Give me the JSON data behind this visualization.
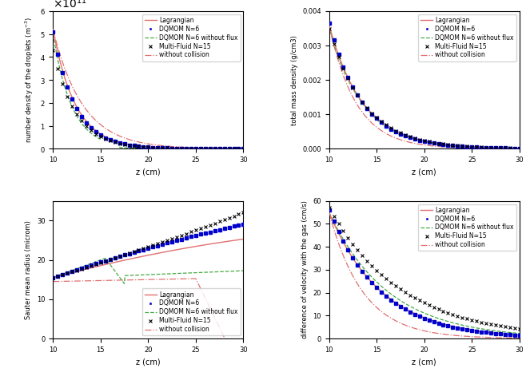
{
  "xlim": [
    10,
    30
  ],
  "xticks": [
    10,
    15,
    20,
    25,
    30
  ],
  "xlabel": "z (cm)",
  "legend_labels": [
    "Lagrangian",
    "DQMOM N=6",
    "DQMOM N=6 without flux",
    "Multi-Fluid N=15",
    "without collision"
  ],
  "colors": {
    "lagrangian": "#e07070",
    "dqmom": "#0000cc",
    "dqmom_noflux": "#44aa44",
    "multifluid": "#000000",
    "nocollision": "#e07070"
  },
  "plot1": {
    "ylabel": "number density of the droplets (m$^{-3}$)",
    "ylim": [
      0,
      600000000000.0
    ],
    "yticks": [
      0,
      100000000000.0,
      200000000000.0,
      300000000000.0,
      400000000000.0,
      500000000000.0,
      600000000000.0
    ]
  },
  "plot2": {
    "ylabel": "total mass density (g/cm3)",
    "ylim": [
      0,
      0.004
    ],
    "yticks": [
      0,
      0.001,
      0.002,
      0.003,
      0.004
    ]
  },
  "plot3": {
    "ylabel": "Sauter mean radius (microm)",
    "ylim": [
      0,
      35
    ],
    "yticks": [
      0,
      10,
      20,
      30
    ],
    "legend_loc": "lower right"
  },
  "plot4": {
    "ylabel": "difference of velocity with the gas (cm/s)",
    "ylim": [
      0,
      60
    ],
    "yticks": [
      0,
      10,
      20,
      30,
      40,
      50,
      60
    ],
    "legend_loc": "upper right"
  }
}
